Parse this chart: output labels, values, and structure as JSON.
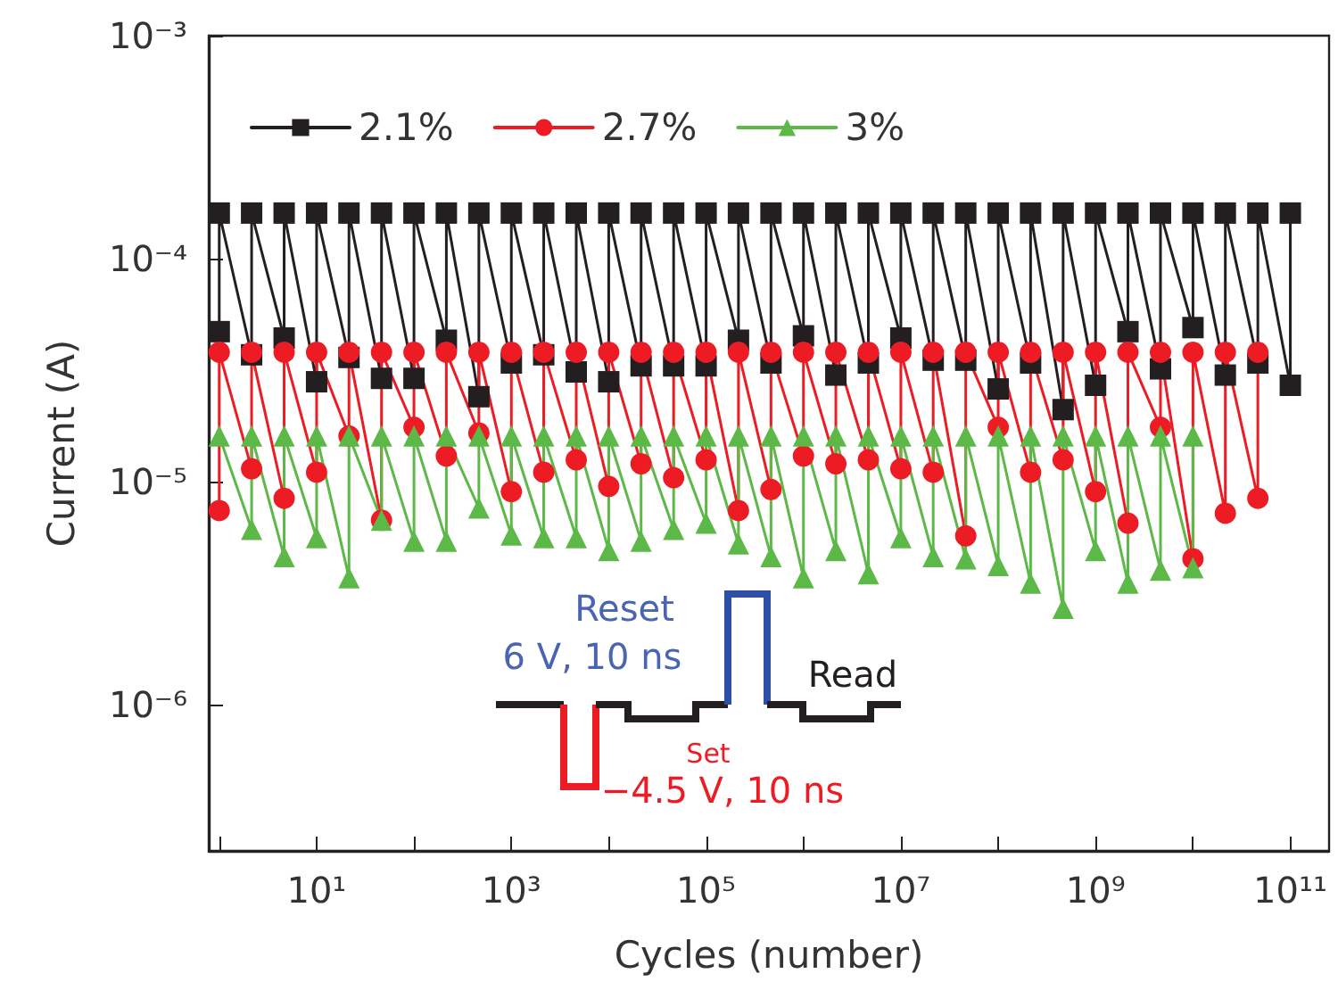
{
  "chart_data": {
    "type": "line",
    "xlabel": "Cycles (number)",
    "ylabel": "Current (A)",
    "log": "xy",
    "grid": false,
    "legend": "top left",
    "line_style": "solid",
    "xlim": [
      0.78,
      250000000000.0
    ],
    "xticks": [
      {
        "value": 1,
        "label": null
      },
      {
        "value": 10,
        "label": "10¹"
      },
      {
        "value": 100,
        "label": null
      },
      {
        "value": 1000,
        "label": "10³"
      },
      {
        "value": 10000,
        "label": null
      },
      {
        "value": 100000,
        "label": "10⁵"
      },
      {
        "value": 1000000,
        "label": null
      },
      {
        "value": 10000000,
        "label": "10⁷"
      },
      {
        "value": 100000000,
        "label": null
      },
      {
        "value": 1000000000,
        "label": "10⁹"
      },
      {
        "value": 10000000000,
        "label": null
      },
      {
        "value": 100000000000,
        "label": "10¹¹"
      }
    ],
    "ylim": [
      2.2e-07,
      0.001
    ],
    "yticks": [
      {
        "value": 1e-06,
        "label": "10⁻⁶"
      },
      {
        "value": 1e-05,
        "label": "10⁻⁵"
      },
      {
        "value": 0.0001,
        "label": "10⁻⁴"
      },
      {
        "value": 0.001,
        "label": "10⁻³"
      }
    ],
    "annotations": [
      "Reset",
      "6 V, 10 ns",
      "Read",
      "Set",
      "−4.5 V, 10 ns"
    ],
    "series": [
      {
        "name": "2.1%",
        "color": "#231f20",
        "marker": "square",
        "x": [
          1,
          1,
          2.15,
          2.15,
          4.64,
          4.64,
          10,
          10,
          21.5,
          21.5,
          46.4,
          46.4,
          100,
          100,
          215,
          215,
          464,
          464,
          1000,
          1000,
          2150,
          2150,
          4640,
          4640,
          10000,
          10000,
          21500,
          21500,
          46400,
          46400,
          100000,
          100000,
          215000,
          215000,
          464000,
          464000,
          1000000,
          1000000,
          2150000,
          2150000,
          4640000,
          4640000,
          10000000,
          10000000,
          21500000,
          21500000,
          46400000,
          46400000,
          100000000,
          100000000,
          215000000,
          215000000,
          464000000,
          464000000,
          1000000000,
          1000000000,
          2150000000,
          2150000000,
          4640000000,
          4640000000,
          10000000000,
          10000000000,
          21500000000,
          21500000000,
          46400000000,
          46400000000,
          100000000000,
          100000000000
        ],
        "values": [
          4.7e-05,
          0.00016,
          3.7e-05,
          0.00016,
          4.4e-05,
          0.00016,
          2.8e-05,
          0.00016,
          3.6e-05,
          0.00016,
          2.9e-05,
          0.00016,
          2.9e-05,
          0.00016,
          4.3e-05,
          0.00016,
          2.4e-05,
          0.00016,
          3.4e-05,
          0.00016,
          3.7e-05,
          0.00016,
          3.1e-05,
          0.00016,
          2.8e-05,
          0.00016,
          3.3e-05,
          0.00016,
          3.3e-05,
          0.00016,
          3.3e-05,
          0.00016,
          4.3e-05,
          0.00016,
          3.4e-05,
          0.00016,
          4.5e-05,
          0.00016,
          3e-05,
          0.00016,
          3.4e-05,
          0.00016,
          4.4e-05,
          0.00016,
          3.5e-05,
          0.00016,
          3.5e-05,
          0.00016,
          2.6e-05,
          0.00016,
          3.4e-05,
          0.00016,
          2.1e-05,
          0.00016,
          2.7e-05,
          0.00016,
          4.7e-05,
          0.00016,
          3.2e-05,
          0.00016,
          4.9e-05,
          0.00016,
          3e-05,
          0.00016,
          3.4e-05,
          0.00016,
          2.7e-05,
          0.00016
        ]
      },
      {
        "name": "2.7%",
        "color": "#ed1c24",
        "marker": "circle",
        "x": [
          1,
          1,
          2.15,
          2.15,
          4.64,
          4.64,
          10,
          10,
          21.5,
          21.5,
          46.4,
          46.4,
          100,
          100,
          215,
          215,
          464,
          464,
          1000,
          1000,
          2150,
          2150,
          4640,
          4640,
          10000,
          10000,
          21500,
          21500,
          46400,
          46400,
          100000,
          100000,
          215000,
          215000,
          464000,
          464000,
          1000000,
          1000000,
          2150000,
          2150000,
          4640000,
          4640000,
          10000000,
          10000000,
          21500000,
          21500000,
          46400000,
          46400000,
          100000000,
          100000000,
          215000000,
          215000000,
          464000000,
          464000000,
          1000000000,
          1000000000,
          2150000000,
          2150000000,
          4640000000,
          4640000000,
          10000000000,
          10000000000,
          21500000000,
          21500000000,
          46400000000,
          46400000000
        ],
        "values": [
          7.4e-06,
          3.8e-05,
          1.14e-05,
          3.8e-05,
          8.4e-06,
          3.8e-05,
          1.1e-05,
          3.8e-05,
          1.6e-05,
          3.8e-05,
          6.7e-06,
          3.8e-05,
          1.75e-05,
          3.8e-05,
          1.3e-05,
          3.8e-05,
          1.65e-05,
          3.8e-05,
          9e-06,
          3.8e-05,
          1.1e-05,
          3.8e-05,
          1.25e-05,
          3.8e-05,
          9.5e-06,
          3.8e-05,
          1.2e-05,
          3.8e-05,
          1.04e-05,
          3.8e-05,
          1.25e-05,
          3.8e-05,
          7.4e-06,
          3.8e-05,
          9.2e-06,
          3.8e-05,
          1.3e-05,
          3.8e-05,
          1.2e-05,
          3.8e-05,
          1.25e-05,
          3.8e-05,
          1.14e-05,
          3.8e-05,
          1.1e-05,
          3.8e-05,
          5.7e-06,
          3.8e-05,
          1.75e-05,
          3.8e-05,
          1.1e-05,
          3.8e-05,
          1.25e-05,
          3.8e-05,
          9e-06,
          3.8e-05,
          6.5e-06,
          3.8e-05,
          1.75e-05,
          3.8e-05,
          4.5e-06,
          3.8e-05,
          7.2e-06,
          3.8e-05,
          8.4e-06,
          3.8e-05
        ]
      },
      {
        "name": "3%",
        "color": "#5cb947",
        "marker": "triangle",
        "x": [
          1,
          2.15,
          2.15,
          4.64,
          4.64,
          10,
          10,
          21.5,
          21.5,
          46.4,
          46.4,
          100,
          100,
          215,
          215,
          464,
          464,
          1000,
          1000,
          2150,
          2150,
          4640,
          4640,
          10000,
          10000,
          21500,
          21500,
          46400,
          46400,
          100000,
          100000,
          215000,
          215000,
          464000,
          464000,
          1000000,
          1000000,
          2150000,
          2150000,
          4640000,
          4640000,
          10000000,
          10000000,
          21500000,
          21500000,
          46400000,
          46400000,
          100000000,
          100000000,
          215000000,
          215000000,
          464000000,
          464000000,
          1000000000,
          1000000000,
          2150000000,
          2150000000,
          4640000000,
          4640000000,
          10000000000,
          10000000000
        ],
        "values": [
          1.6e-05,
          6.1e-06,
          1.6e-05,
          4.6e-06,
          1.6e-05,
          5.6e-06,
          1.6e-05,
          3.7e-06,
          1.6e-05,
          6.7e-06,
          1.6e-05,
          5.4e-06,
          1.6e-05,
          5.4e-06,
          1.6e-05,
          7.6e-06,
          1.6e-05,
          5.75e-06,
          1.6e-05,
          5.6e-06,
          1.6e-05,
          5.6e-06,
          1.6e-05,
          4.9e-06,
          1.6e-05,
          5.4e-06,
          1.6e-05,
          6.1e-06,
          1.6e-05,
          6.5e-06,
          1.6e-05,
          5.25e-06,
          1.6e-05,
          4.6e-06,
          1.6e-05,
          3.7e-06,
          1.6e-05,
          4.9e-06,
          1.6e-05,
          3.85e-06,
          1.6e-05,
          5.6e-06,
          1.6e-05,
          4.6e-06,
          1.6e-05,
          4.5e-06,
          1.6e-05,
          4.2e-06,
          1.6e-05,
          3.5e-06,
          1.6e-05,
          2.7e-06,
          1.6e-05,
          4.9e-06,
          1.6e-05,
          3.5e-06,
          1.6e-05,
          4e-06,
          1.6e-05,
          4.1e-06,
          1.6e-05
        ]
      }
    ]
  }
}
